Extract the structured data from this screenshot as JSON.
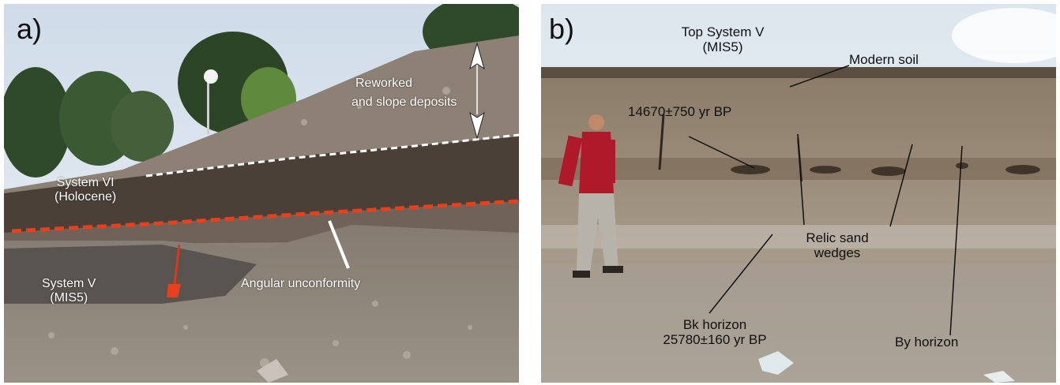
{
  "panel_a": {
    "label": "a)",
    "annotations": {
      "reworked_line1": "Reworked",
      "reworked_line2": "and slope deposits",
      "system_vi_line1": "System VI",
      "system_vi_line2": "(Holocene)",
      "system_v_line1": "System V",
      "system_v_line2": "(MIS5)",
      "angular": "Angular unconformity"
    }
  },
  "panel_b": {
    "label": "b)",
    "annotations": {
      "top_system_line1": "Top System V",
      "top_system_line2": "(MIS5)",
      "modern_soil": "Modern soil",
      "date_upper": "14670±750 yr BP",
      "relic_line1": "Relic sand",
      "relic_line2": "wedges",
      "bk_line1": "Bk horizon",
      "bk_line2": "25780±160 yr BP",
      "by_horizon": "By horizon"
    }
  },
  "colors": {
    "white_dashed_line": "#ffffff",
    "red_dashed_line": "#e8401c"
  }
}
